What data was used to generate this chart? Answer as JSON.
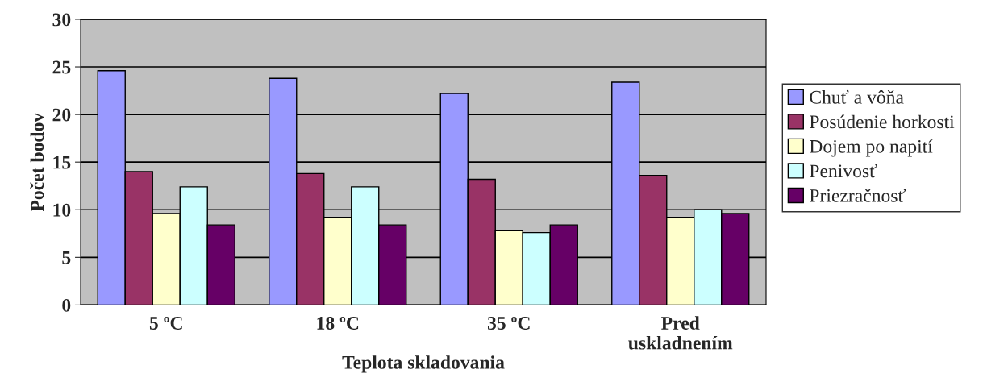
{
  "chart_data": {
    "type": "bar",
    "xlabel": "Teplota skladovania",
    "ylabel": "Počet bodov",
    "categories": [
      "5 ºC",
      "18 ºC",
      "35 ºC",
      "Pred\nuskladnením"
    ],
    "series": [
      {
        "name": "Chuť a vôňa",
        "color": "#9999ff",
        "values": [
          24.6,
          23.8,
          22.2,
          23.4
        ]
      },
      {
        "name": "Posúdenie horkosti",
        "color": "#993366",
        "values": [
          14.0,
          13.8,
          13.2,
          13.6
        ]
      },
      {
        "name": "Dojem po napití",
        "color": "#ffffcc",
        "values": [
          9.6,
          9.2,
          7.8,
          9.2
        ]
      },
      {
        "name": "Penivosť",
        "color": "#ccffff",
        "values": [
          12.4,
          12.4,
          7.6,
          10.0
        ]
      },
      {
        "name": "Priezračnosť",
        "color": "#660066",
        "values": [
          8.4,
          8.4,
          8.4,
          9.6
        ]
      }
    ],
    "ylim": [
      0,
      30
    ],
    "yticks": [
      0,
      5,
      10,
      15,
      20,
      25,
      30
    ],
    "grid": "y",
    "legend": "right"
  }
}
